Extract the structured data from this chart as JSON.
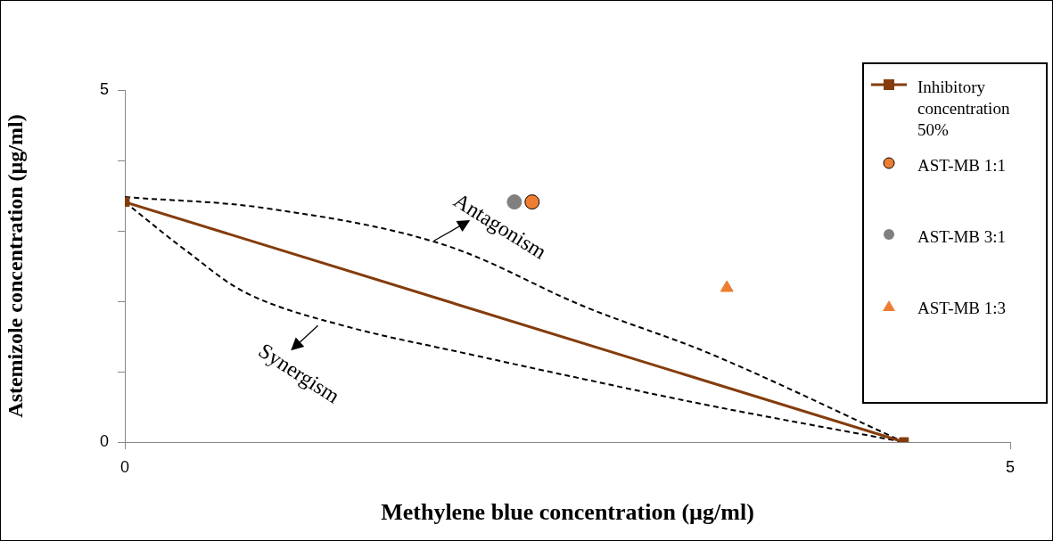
{
  "chart_data": {
    "type": "line",
    "xlabel": "Methylene blue concentration (µg/ml)",
    "ylabel": "Astemizole concentration (µg/ml)",
    "xlim": [
      0,
      5
    ],
    "xticks": [
      0,
      5
    ],
    "ylim": [
      0,
      5
    ],
    "yticks": [
      0,
      {
        "value": 1,
        "label": null
      },
      {
        "value": 2,
        "label": null
      },
      {
        "value": 3,
        "label": null
      },
      {
        "value": 4,
        "label": null
      },
      5
    ],
    "grid": false,
    "legend": "right",
    "series": [
      {
        "name": "Inhibitory concentration 50%",
        "color": "#843c0c",
        "marker": "square",
        "line_style": "solid",
        "x": [
          0,
          4.4
        ],
        "values": [
          3.41,
          0
        ]
      },
      {
        "name": "AST-MB 1:1",
        "type": "scatter",
        "color": "#ed7d31",
        "marker": "circle",
        "x": [
          2.3
        ],
        "values": [
          3.41
        ]
      },
      {
        "name": "AST-MB 3:1",
        "type": "scatter",
        "color": "#808080",
        "marker": "circle",
        "x": [
          2.2
        ],
        "values": [
          3.41
        ]
      },
      {
        "name": "AST-MB 1:3",
        "type": "scatter",
        "color": "#ed7d31",
        "marker": "triangle",
        "x": [
          3.4
        ],
        "values": [
          2.19
        ]
      },
      {
        "color": "#000000",
        "marker": "none",
        "line_style": "dashed",
        "x": [
          0,
          0.8,
          1.78,
          2.6,
          3.32,
          4.4
        ],
        "values": [
          3.48,
          3.32,
          2.82,
          1.92,
          1.24,
          0
        ]
      },
      {
        "color": "#000000",
        "marker": "none",
        "line_style": "dashed",
        "x": [
          0,
          0.34,
          0.7,
          1.24,
          1.96,
          2.6,
          3.32,
          4.4
        ],
        "values": [
          3.41,
          2.73,
          2.1,
          1.65,
          1.24,
          0.89,
          0.51,
          0
        ]
      }
    ],
    "annotations": [
      "Antagonism",
      "Synergism"
    ]
  }
}
